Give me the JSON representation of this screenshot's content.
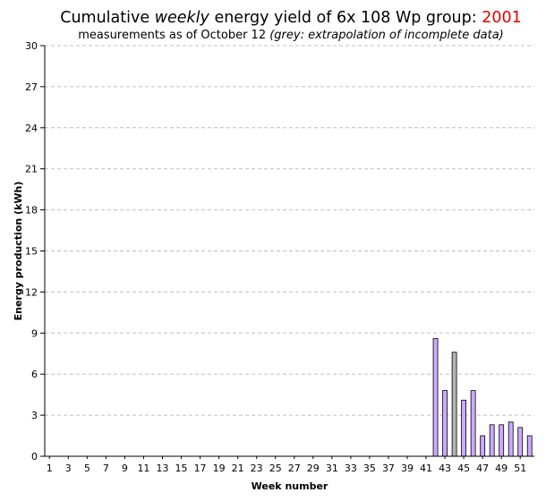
{
  "header": {
    "title_pre": "Cumulative ",
    "title_em": "weekly",
    "title_post": " energy yield of 6x 108 Wp group: ",
    "title_year": "2001",
    "subtitle_main": "measurements as of October 12 ",
    "subtitle_note": "(grey: extrapolation of incomplete data)"
  },
  "colors": {
    "measured": "#ccaaff",
    "extrapolated": "#b4b4b4",
    "bar_outline": "#000000",
    "grid": "#c0c0c0",
    "title_year": "#e00000"
  },
  "chart_data": {
    "type": "bar",
    "title": "Cumulative weekly energy yield of 6x 108 Wp group: 2001",
    "subtitle": "measurements as of October 12 (grey: extrapolation of incomplete data)",
    "xlabel": "Week number",
    "ylabel": "Energy production (kWh)",
    "ylim": [
      0,
      30
    ],
    "yticks": [
      0,
      3,
      6,
      9,
      12,
      15,
      18,
      21,
      24,
      27,
      30
    ],
    "xlim": [
      1,
      52
    ],
    "xticks": [
      1,
      3,
      5,
      7,
      9,
      11,
      13,
      15,
      17,
      19,
      21,
      23,
      25,
      27,
      29,
      31,
      33,
      35,
      37,
      39,
      41,
      43,
      45,
      47,
      49,
      51
    ],
    "grid": true,
    "bars": [
      {
        "week": 42,
        "value": 8.6,
        "type": "measured"
      },
      {
        "week": 43,
        "value": 4.8,
        "type": "measured"
      },
      {
        "week": 44,
        "value": 7.6,
        "type": "extrapolated"
      },
      {
        "week": 45,
        "value": 4.1,
        "type": "measured"
      },
      {
        "week": 46,
        "value": 4.8,
        "type": "measured"
      },
      {
        "week": 47,
        "value": 1.5,
        "type": "measured"
      },
      {
        "week": 48,
        "value": 2.3,
        "type": "measured"
      },
      {
        "week": 49,
        "value": 2.3,
        "type": "measured"
      },
      {
        "week": 50,
        "value": 2.5,
        "type": "measured"
      },
      {
        "week": 51,
        "value": 2.1,
        "type": "measured"
      },
      {
        "week": 52,
        "value": 1.5,
        "type": "measured"
      }
    ]
  }
}
